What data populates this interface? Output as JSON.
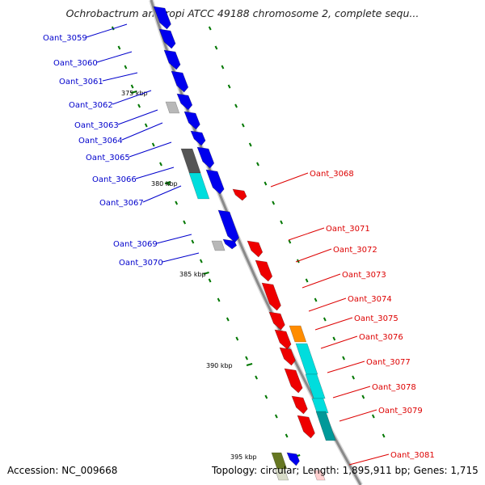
{
  "title": "Ochrobactrum anthropi ATCC 49188 chromosome 2, complete sequ...",
  "footer": {
    "accession_label": "Accession:",
    "accession": "NC_009668",
    "topology_label": "Topology:",
    "topology": "circular",
    "length_label": "Length:",
    "length": "1,895,911 bp",
    "genes_label": "Genes:",
    "genes": "1,715"
  },
  "colors": {
    "backbone": "#8a8a8a",
    "forward_gene": "#0000ee",
    "reverse_gene": "#ee0000",
    "label_forward": "#0000cc",
    "label_reverse": "#dd0000",
    "tick": "#007700",
    "cyan": "#00dddd",
    "orange": "#ff8c00",
    "gray": "#b8b8b8",
    "dark_gray": "#555555",
    "olive": "#667722"
  },
  "kbp_ticks": [
    "375 kbp",
    "380 kbp",
    "385 kbp",
    "390 kbp",
    "395 kbp"
  ],
  "forward_labels": [
    "Oant_3059",
    "Oant_3060",
    "Oant_3061",
    "Oant_3062",
    "Oant_3063",
    "Oant_3064",
    "Oant_3065",
    "Oant_3066",
    "Oant_3067",
    "Oant_3069",
    "Oant_3070"
  ],
  "reverse_labels": [
    "Oant_3068",
    "Oant_3071",
    "Oant_3072",
    "Oant_3073",
    "Oant_3074",
    "Oant_3075",
    "Oant_3076",
    "Oant_3077",
    "Oant_3078",
    "Oant_3079",
    "Oant_3081"
  ]
}
